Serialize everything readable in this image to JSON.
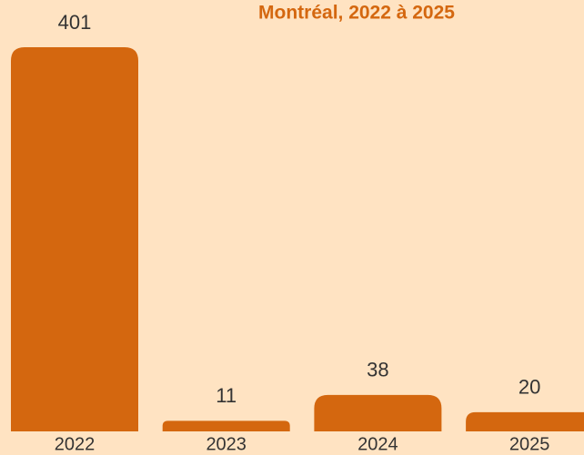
{
  "chart_data": {
    "type": "bar",
    "title": "Montréal, 2022 à 2025",
    "categories": [
      "2022",
      "2023",
      "2024",
      "2025"
    ],
    "values": [
      401,
      11,
      38,
      20
    ],
    "color": "#d4670f"
  }
}
